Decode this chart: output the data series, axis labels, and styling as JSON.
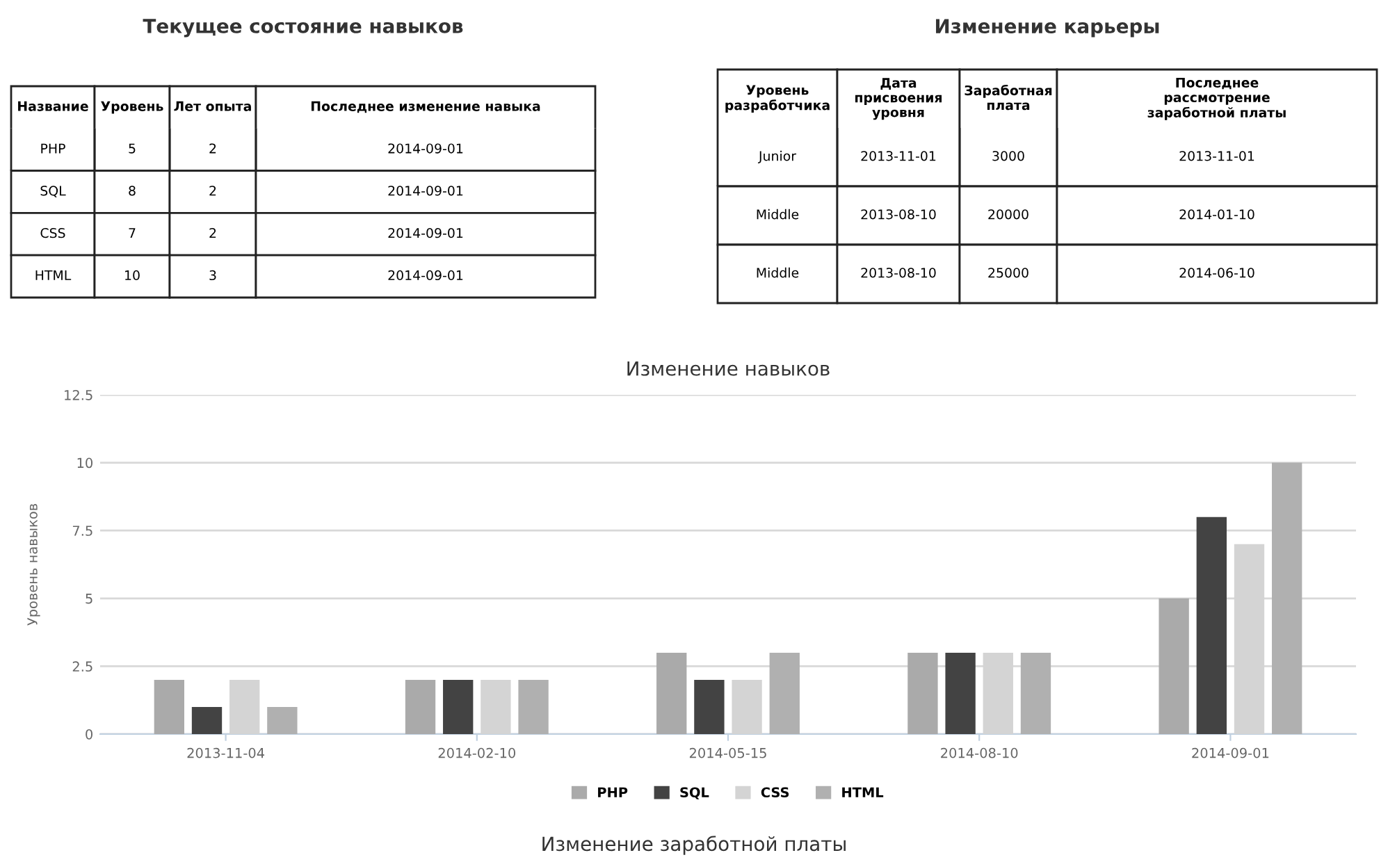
{
  "chart_data": [
    {
      "type": "other",
      "title": "Текущее состояние навыков",
      "categories": [
        "Название",
        "Уровень",
        "Лет опыта",
        "Последнее изменение навыка"
      ],
      "cell_labels": [
        [
          "PHP",
          "5",
          "2",
          "2014-09-01"
        ],
        [
          "SQL",
          "8",
          "2",
          "2014-09-01"
        ],
        [
          "CSS",
          "7",
          "2",
          "2014-09-01"
        ],
        [
          "HTML",
          "10",
          "3",
          "2014-09-01"
        ]
      ]
    },
    {
      "type": "other",
      "title": "Изменение карьеры",
      "categories": [
        "Уровень\nразработчика",
        "Дата\nприсвоения\nуровня",
        "Заработная\nплата",
        "Последнее\nрассмотрение\nзаработной платы"
      ],
      "cell_labels": [
        [
          "Junior",
          "2013-11-01",
          "3000",
          "2013-11-01"
        ],
        [
          "Middle",
          "2013-08-10",
          "20000",
          "2014-01-10"
        ],
        [
          "Middle",
          "2013-08-10",
          "25000",
          "2014-06-10"
        ]
      ]
    },
    {
      "type": "bar",
      "title": "Изменение навыков",
      "ylabel": "Уровень навыков",
      "categories": [
        "2013-11-04",
        "2014-02-10",
        "2014-05-15",
        "2014-08-10",
        "2014-09-01"
      ],
      "series": [
        {
          "name": "PHP",
          "color": "#aaaaaa",
          "values": [
            2,
            2,
            3,
            3,
            5
          ]
        },
        {
          "name": "SQL",
          "color": "#434343",
          "values": [
            1,
            2,
            2,
            3,
            8
          ]
        },
        {
          "name": "CSS",
          "color": "#d4d4d4",
          "values": [
            2,
            2,
            2,
            3,
            7
          ]
        },
        {
          "name": "HTML",
          "color": "#b0b0b0",
          "values": [
            1,
            2,
            3,
            3,
            10
          ]
        }
      ],
      "ylim": [
        0,
        12.5
      ],
      "yticks": [
        0,
        2.5,
        5,
        7.5,
        10,
        12.5
      ],
      "grid": "y",
      "legend": "bottom",
      "annotations": [
        "Изменение заработной платы"
      ]
    }
  ]
}
